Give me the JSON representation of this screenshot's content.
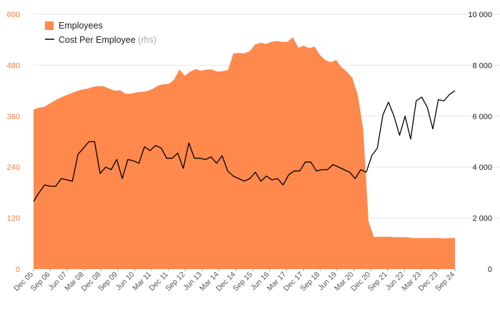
{
  "chart_data": {
    "type": "area",
    "legend": {
      "placement": "top-left",
      "employees_label": "Employees",
      "cost_label": "Cost Per Employee",
      "cost_suffix": "(rhs)"
    },
    "y_left": {
      "ticks": [
        0,
        120,
        240,
        360,
        480,
        600
      ],
      "tick_labels": [
        "0",
        "120",
        "240",
        "360",
        "480",
        "600"
      ],
      "ylim": [
        0,
        600
      ]
    },
    "y_right": {
      "ticks": [
        0,
        2000,
        4000,
        6000,
        8000,
        10000
      ],
      "tick_labels": [
        "0",
        "2 000",
        "4 000",
        "6 000",
        "8 000",
        "10 000"
      ],
      "ylim": [
        0,
        10000
      ]
    },
    "x_tick_labels": [
      "Dec 05",
      "Sep 06",
      "Jun 07",
      "Mar 08",
      "Dec 08",
      "Sep 09",
      "Jun 10",
      "Mar 11",
      "Dec 11",
      "Sep 12",
      "Jun 13",
      "Mar 14",
      "Dec 14",
      "Sep 15",
      "Jun 16",
      "Mar 17",
      "Dec 17",
      "Sep 18",
      "Jun 19",
      "Mar 20",
      "Dec 20",
      "Sep 21",
      "Jun 22",
      "Mar 23",
      "Dec 23",
      "Sep 24"
    ],
    "grid": true,
    "colors": {
      "employees": "#ff884d",
      "cost": "#000000",
      "left_axis": "#f47c3c",
      "grid": "#e6e6e6"
    },
    "series": [
      {
        "name": "Employees",
        "type": "area",
        "axis": "left",
        "values": [
          376,
          380,
          382,
          390,
          397,
          404,
          409,
          414,
          419,
          423,
          425,
          429,
          431,
          430,
          425,
          420,
          421,
          413,
          413,
          416,
          417,
          419,
          424,
          432,
          435,
          436,
          446,
          470,
          455,
          465,
          471,
          467,
          470,
          470,
          465,
          466,
          469,
          508,
          509,
          508,
          513,
          529,
          533,
          530,
          535,
          537,
          535,
          535,
          546,
          521,
          526,
          520,
          524,
          504,
          492,
          487,
          492,
          475,
          465,
          450,
          410,
          330,
          112,
          75,
          76,
          76,
          76,
          75,
          75,
          75,
          73,
          73,
          73,
          73,
          73,
          73,
          72,
          73,
          73
        ]
      },
      {
        "name": "Cost Per Employee",
        "type": "line",
        "axis": "right",
        "values": [
          2650,
          3000,
          3300,
          3250,
          3250,
          3550,
          3500,
          3450,
          4500,
          4750,
          5000,
          5000,
          3750,
          4000,
          3900,
          4300,
          3550,
          4300,
          4250,
          4150,
          4800,
          4650,
          4850,
          4750,
          4350,
          4350,
          4550,
          3950,
          4950,
          4350,
          4350,
          4300,
          4400,
          4150,
          4450,
          3850,
          3650,
          3550,
          3450,
          3550,
          3800,
          3450,
          3650,
          3500,
          3550,
          3300,
          3700,
          3850,
          3850,
          4200,
          4200,
          3850,
          3900,
          3900,
          4100,
          4000,
          3900,
          3800,
          3550,
          3900,
          3800,
          4450,
          4750,
          6050,
          6550,
          6000,
          5250,
          6000,
          5100,
          6600,
          6750,
          6350,
          5500,
          6650,
          6600,
          6850,
          7000
        ]
      }
    ]
  }
}
